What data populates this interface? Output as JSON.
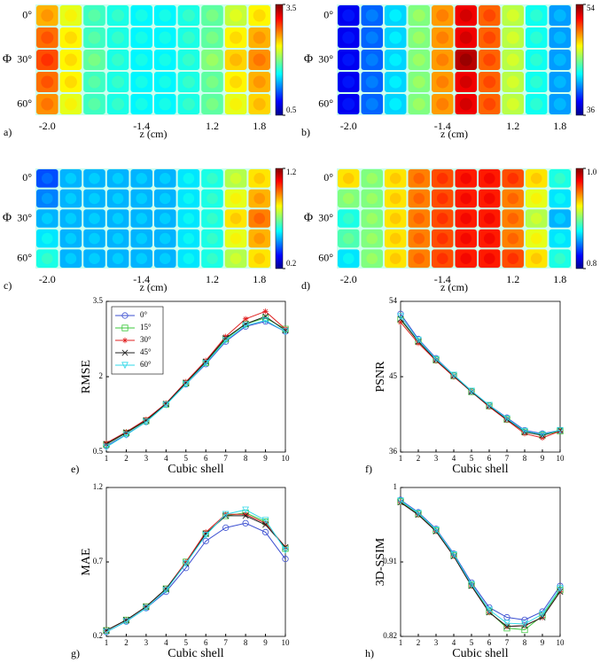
{
  "chart_data": [
    {
      "type": "heatmap",
      "panel_label": "a)",
      "xlabel": "z (cm)",
      "ylabel": "Φ",
      "x_labels": [
        "-2.0",
        null,
        null,
        null,
        "-1.4",
        null,
        null,
        "1.2",
        null,
        "1.8"
      ],
      "y_labels": [
        "0°",
        null,
        "30°",
        null,
        "60°"
      ],
      "clim": [
        0.5,
        3.5
      ],
      "cticks": [
        0.5,
        3.5
      ],
      "values": [
        [
          2.6,
          2.3,
          1.8,
          1.7,
          1.6,
          1.6,
          1.7,
          1.9,
          2.2,
          2.4
        ],
        [
          2.8,
          2.4,
          1.8,
          1.7,
          1.6,
          1.6,
          1.7,
          1.9,
          2.4,
          2.6
        ],
        [
          2.9,
          2.4,
          1.9,
          1.7,
          1.6,
          1.6,
          1.7,
          2.0,
          2.5,
          2.7
        ],
        [
          2.8,
          2.4,
          1.8,
          1.7,
          1.6,
          1.6,
          1.7,
          1.9,
          2.4,
          2.6
        ],
        [
          2.7,
          2.3,
          1.8,
          1.7,
          1.6,
          1.6,
          1.7,
          1.9,
          2.3,
          2.5
        ]
      ]
    },
    {
      "type": "heatmap",
      "panel_label": "b)",
      "xlabel": "z (cm)",
      "ylabel": "Φ",
      "x_labels": [
        "-2.0",
        null,
        null,
        null,
        "-1.4",
        null,
        null,
        "1.2",
        null,
        "1.8"
      ],
      "y_labels": [
        "0°",
        null,
        "30°",
        null,
        "60°"
      ],
      "clim": [
        36,
        54
      ],
      "cticks": [
        36,
        54
      ],
      "values": [
        [
          38,
          40,
          42,
          45,
          49,
          52,
          50,
          46,
          43,
          41
        ],
        [
          38,
          40,
          42,
          45,
          49,
          52,
          50,
          46,
          43,
          41
        ],
        [
          38,
          40,
          42,
          45,
          49,
          53,
          50,
          46,
          43,
          41
        ],
        [
          38,
          40,
          42,
          45,
          49,
          52,
          50,
          46,
          43,
          41
        ],
        [
          38,
          40,
          42,
          45,
          49,
          52,
          50,
          46,
          43,
          41
        ]
      ]
    },
    {
      "type": "heatmap",
      "panel_label": "c)",
      "xlabel": "z (cm)",
      "ylabel": "Φ",
      "x_labels": [
        "-2.0",
        null,
        null,
        null,
        "-1.4",
        null,
        null,
        "1.2",
        null,
        "1.8"
      ],
      "y_labels": [
        "0°",
        null,
        "30°",
        null,
        "60°"
      ],
      "clim": [
        0.2,
        1.2
      ],
      "cticks": [
        0.2,
        1.2
      ],
      "values": [
        [
          0.4,
          0.5,
          0.5,
          0.5,
          0.5,
          0.5,
          0.55,
          0.6,
          0.75,
          0.85
        ],
        [
          0.45,
          0.5,
          0.5,
          0.5,
          0.5,
          0.5,
          0.55,
          0.6,
          0.8,
          0.9
        ],
        [
          0.5,
          0.5,
          0.5,
          0.5,
          0.5,
          0.5,
          0.55,
          0.6,
          0.85,
          0.95
        ],
        [
          0.55,
          0.5,
          0.5,
          0.5,
          0.5,
          0.5,
          0.55,
          0.6,
          0.8,
          0.9
        ],
        [
          0.6,
          0.5,
          0.5,
          0.5,
          0.5,
          0.5,
          0.55,
          0.6,
          0.75,
          0.85
        ]
      ]
    },
    {
      "type": "heatmap",
      "panel_label": "d)",
      "xlabel": "z (cm)",
      "ylabel": "Φ",
      "x_labels": [
        "-2.0",
        null,
        null,
        null,
        "-1.4",
        null,
        null,
        "1.2",
        null,
        "1.8"
      ],
      "y_labels": [
        "0°",
        null,
        "30°",
        null,
        "60°"
      ],
      "clim": [
        0.8,
        1.0
      ],
      "cticks": [
        0.8,
        {
          "value": 1.0,
          "label": "1.0"
        }
      ],
      "values": [
        [
          0.93,
          0.9,
          0.93,
          0.95,
          0.96,
          0.97,
          0.97,
          0.96,
          0.93,
          0.88
        ],
        [
          0.9,
          0.9,
          0.93,
          0.95,
          0.96,
          0.97,
          0.97,
          0.95,
          0.92,
          0.87
        ],
        [
          0.88,
          0.9,
          0.93,
          0.95,
          0.96,
          0.97,
          0.97,
          0.95,
          0.91,
          0.86
        ],
        [
          0.89,
          0.9,
          0.93,
          0.95,
          0.96,
          0.97,
          0.97,
          0.95,
          0.92,
          0.87
        ],
        [
          0.87,
          0.9,
          0.93,
          0.95,
          0.96,
          0.97,
          0.97,
          0.96,
          0.93,
          0.88
        ]
      ]
    },
    {
      "type": "line",
      "panel_label": "e)",
      "xlabel": "Cubic shell",
      "ylabel": "RMSE",
      "x": [
        1,
        2,
        3,
        4,
        5,
        6,
        7,
        8,
        9,
        10
      ],
      "xlim": [
        1,
        10
      ],
      "xticks": [
        1,
        2,
        3,
        4,
        5,
        6,
        7,
        8,
        9,
        10
      ],
      "ylim": [
        0.5,
        3.5
      ],
      "yticks": [
        0.5,
        2,
        3.5
      ],
      "legend": "upper-left",
      "series": [
        {
          "name": "0°",
          "color": "#3b4fd1",
          "marker": "circle",
          "values": [
            0.62,
            0.85,
            1.1,
            1.45,
            1.85,
            2.25,
            2.7,
            3.0,
            3.1,
            2.9
          ]
        },
        {
          "name": "15°",
          "color": "#3cc83c",
          "marker": "square",
          "values": [
            0.65,
            0.88,
            1.12,
            1.45,
            1.87,
            2.28,
            2.75,
            3.05,
            3.17,
            2.95
          ]
        },
        {
          "name": "30°",
          "color": "#e02020",
          "marker": "star",
          "values": [
            0.68,
            0.9,
            1.15,
            1.47,
            1.9,
            2.32,
            2.8,
            3.15,
            3.3,
            2.95
          ]
        },
        {
          "name": "45°",
          "color": "#202020",
          "marker": "x",
          "values": [
            0.66,
            0.89,
            1.13,
            1.46,
            1.88,
            2.3,
            2.77,
            3.05,
            3.2,
            2.92
          ]
        },
        {
          "name": "60°",
          "color": "#30d8e8",
          "marker": "triangle-down",
          "values": [
            0.6,
            0.84,
            1.1,
            1.44,
            1.85,
            2.27,
            2.72,
            3.02,
            3.12,
            2.9
          ]
        }
      ]
    },
    {
      "type": "line",
      "panel_label": "f)",
      "xlabel": "Cubic shell",
      "ylabel": "PSNR",
      "x": [
        1,
        2,
        3,
        4,
        5,
        6,
        7,
        8,
        9,
        10
      ],
      "xlim": [
        1,
        10
      ],
      "xticks": [
        1,
        2,
        3,
        4,
        5,
        6,
        7,
        8,
        9,
        10
      ],
      "ylim": [
        36,
        54
      ],
      "yticks": [
        36,
        45,
        54
      ],
      "series": [
        {
          "color": "#3b4fd1",
          "marker": "circle",
          "values": [
            52.5,
            49.5,
            47.2,
            45.2,
            43.3,
            41.6,
            40.1,
            38.6,
            38.2,
            38.6
          ]
        },
        {
          "color": "#3cc83c",
          "marker": "square",
          "values": [
            51.8,
            49.2,
            47,
            45.1,
            43.2,
            41.5,
            39.9,
            38.4,
            38.0,
            38.5
          ]
        },
        {
          "color": "#e02020",
          "marker": "star",
          "values": [
            51.5,
            49,
            46.9,
            45,
            43.2,
            41.4,
            39.8,
            38.2,
            37.7,
            38.5
          ]
        },
        {
          "color": "#202020",
          "marker": "x",
          "values": [
            51.9,
            49.2,
            47,
            45.1,
            43.2,
            41.5,
            39.9,
            38.4,
            38.0,
            38.6
          ]
        },
        {
          "color": "#30d8e8",
          "marker": "triangle-down",
          "values": [
            52.2,
            49.4,
            47.1,
            45.2,
            43.3,
            41.6,
            40.0,
            38.5,
            38.1,
            38.6
          ]
        }
      ]
    },
    {
      "type": "line",
      "panel_label": "g)",
      "xlabel": "Cubic shell",
      "ylabel": "MAE",
      "x": [
        1,
        2,
        3,
        4,
        5,
        6,
        7,
        8,
        9,
        10
      ],
      "xlim": [
        1,
        10
      ],
      "xticks": [
        1,
        2,
        3,
        4,
        5,
        6,
        7,
        8,
        9,
        10
      ],
      "ylim": [
        0.2,
        1.2
      ],
      "yticks": [
        0.2,
        0.7,
        1.2
      ],
      "series": [
        {
          "color": "#3b4fd1",
          "marker": "circle",
          "values": [
            0.23,
            0.3,
            0.39,
            0.5,
            0.66,
            0.84,
            0.93,
            0.96,
            0.9,
            0.72
          ]
        },
        {
          "color": "#3cc83c",
          "marker": "square",
          "values": [
            0.24,
            0.31,
            0.4,
            0.52,
            0.7,
            0.89,
            1.01,
            1.03,
            0.97,
            0.79
          ]
        },
        {
          "color": "#e02020",
          "marker": "star",
          "values": [
            0.24,
            0.31,
            0.4,
            0.52,
            0.7,
            0.9,
            1.02,
            1.02,
            0.96,
            0.8
          ]
        },
        {
          "color": "#202020",
          "marker": "x",
          "values": [
            0.24,
            0.31,
            0.4,
            0.52,
            0.69,
            0.89,
            1.01,
            1.01,
            0.95,
            0.8
          ]
        },
        {
          "color": "#30d8e8",
          "marker": "triangle-down",
          "values": [
            0.23,
            0.3,
            0.39,
            0.51,
            0.69,
            0.88,
            1.02,
            1.05,
            0.98,
            0.78
          ]
        }
      ]
    },
    {
      "type": "line",
      "panel_label": "h)",
      "xlabel": "Cubic shell",
      "ylabel": "3D-SSIM",
      "x": [
        1,
        2,
        3,
        4,
        5,
        6,
        7,
        8,
        9,
        10
      ],
      "xlim": [
        1,
        10
      ],
      "xticks": [
        1,
        2,
        3,
        4,
        5,
        6,
        7,
        8,
        9,
        10
      ],
      "ylim": [
        0.82,
        1
      ],
      "yticks": [
        0.82,
        0.91,
        1
      ],
      "series": [
        {
          "color": "#3b4fd1",
          "marker": "circle",
          "values": [
            0.985,
            0.97,
            0.95,
            0.92,
            0.885,
            0.855,
            0.843,
            0.84,
            0.85,
            0.881
          ]
        },
        {
          "color": "#3cc83c",
          "marker": "square",
          "values": [
            0.983,
            0.968,
            0.948,
            0.918,
            0.882,
            0.85,
            0.83,
            0.828,
            0.845,
            0.876
          ]
        },
        {
          "color": "#e02020",
          "marker": "star",
          "values": [
            0.982,
            0.967,
            0.947,
            0.917,
            0.881,
            0.849,
            0.832,
            0.833,
            0.843,
            0.874
          ]
        },
        {
          "color": "#202020",
          "marker": "x",
          "values": [
            0.982,
            0.967,
            0.947,
            0.917,
            0.881,
            0.849,
            0.832,
            0.833,
            0.843,
            0.874
          ]
        },
        {
          "color": "#30d8e8",
          "marker": "triangle-down",
          "values": [
            0.984,
            0.969,
            0.949,
            0.919,
            0.883,
            0.852,
            0.836,
            0.835,
            0.847,
            0.878
          ]
        }
      ]
    }
  ]
}
